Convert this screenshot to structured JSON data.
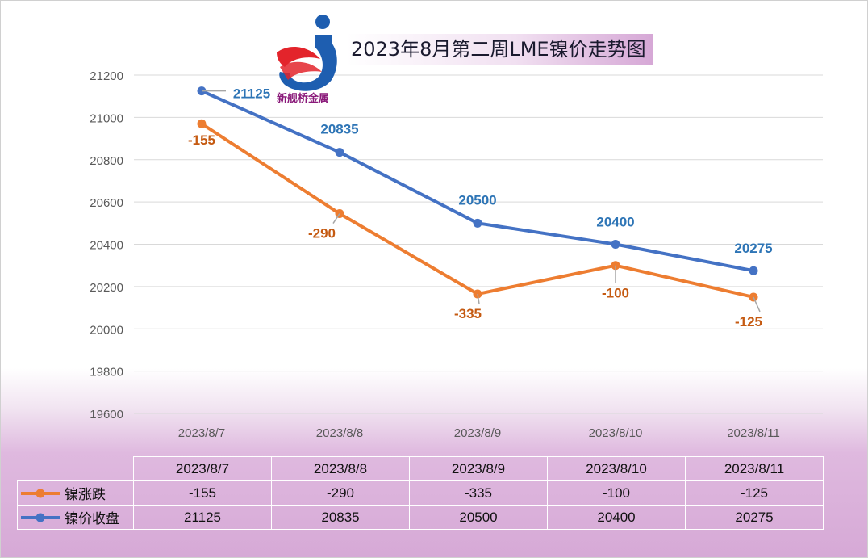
{
  "title": "2023年8月第二周LME镍价走势图",
  "logo": {
    "text": "新舰桥金属",
    "colors": {
      "blue": "#1e5eb0",
      "red": "#e3242b"
    }
  },
  "colors": {
    "blue_series": "#4472c4",
    "orange_series": "#ed7d31",
    "blue_label": "#2e75b6",
    "orange_label": "#c55a11",
    "grid": "#d9d9d9",
    "axis_text": "#595959"
  },
  "chart_data": {
    "type": "line",
    "title": "2023年8月第二周LME镍价走势图",
    "categories": [
      "2023/8/7",
      "2023/8/8",
      "2023/8/9",
      "2023/8/10",
      "2023/8/11"
    ],
    "ylim": [
      19600,
      21200
    ],
    "yticks": [
      19600,
      19800,
      20000,
      20200,
      20400,
      20600,
      20800,
      21000,
      21200
    ],
    "grid": true,
    "legend": "bottom-left data table",
    "series": [
      {
        "name": "镍涨跌",
        "color": "#ed7d31",
        "values": [
          20970,
          20545,
          20165,
          20300,
          20150
        ],
        "labels": [
          "-155",
          "-290",
          "-335",
          "-100",
          "-125"
        ]
      },
      {
        "name": "镍价收盘",
        "color": "#4472c4",
        "values": [
          21125,
          20835,
          20500,
          20400,
          20275
        ],
        "labels": [
          "21125",
          "20835",
          "20500",
          "20400",
          "20275"
        ]
      }
    ]
  },
  "table": {
    "header": [
      "2023/8/7",
      "2023/8/8",
      "2023/8/9",
      "2023/8/10",
      "2023/8/11"
    ],
    "rows": [
      {
        "label": "镍涨跌",
        "values": [
          "-155",
          "-290",
          "-335",
          "-100",
          "-125"
        ]
      },
      {
        "label": "镍价收盘",
        "values": [
          "21125",
          "20835",
          "20500",
          "20400",
          "20275"
        ]
      }
    ]
  }
}
